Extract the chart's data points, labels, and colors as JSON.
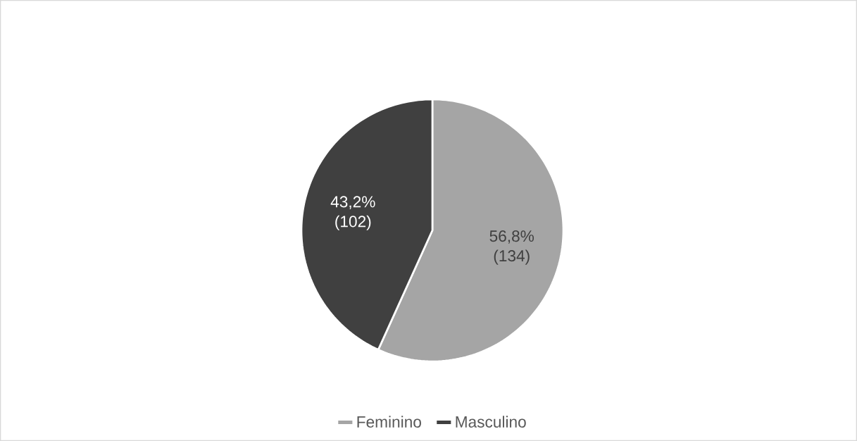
{
  "chart_data": {
    "type": "pie",
    "categories": [
      "Feminino",
      "Masculino"
    ],
    "values": [
      134,
      102
    ],
    "colors": [
      "#a5a5a5",
      "#404040"
    ],
    "value_labels": [
      "56,8% (134)",
      "43,2% (102)"
    ],
    "legend": "bottom"
  }
}
